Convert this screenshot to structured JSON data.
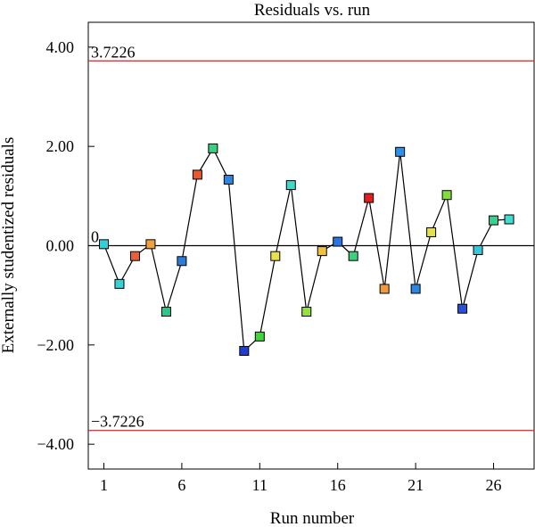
{
  "chart_data": {
    "type": "scatter",
    "title": "Residuals vs. run",
    "xlabel": "Run number",
    "ylabel": "Externally studentized residuals",
    "xlim": [
      0,
      28.6
    ],
    "ylim": [
      -4.5,
      4.5
    ],
    "x_ticks": [
      {
        "value": 1,
        "label": "1"
      },
      {
        "value": 6,
        "label": "6"
      },
      {
        "value": 11,
        "label": "11"
      },
      {
        "value": 16,
        "label": "16"
      },
      {
        "value": 21,
        "label": "21"
      },
      {
        "value": 26,
        "label": "26"
      }
    ],
    "y_ticks": [
      {
        "value": 4,
        "label": "4.00"
      },
      {
        "value": 2,
        "label": "2.00"
      },
      {
        "value": 0,
        "label": "0.00"
      },
      {
        "value": -2,
        "label": "-2.00"
      },
      {
        "value": -4,
        "label": "-4.00"
      }
    ],
    "reference_lines": [
      {
        "value": 3.7226,
        "label": "3.7226",
        "color": "#e02020"
      },
      {
        "value": 0,
        "label": "0",
        "color": "#000000"
      },
      {
        "value": -3.7226,
        "label": "-3.7226",
        "color": "#e02020"
      }
    ],
    "series": [
      {
        "connected": true,
        "line_color": "#000000",
        "points": [
          {
            "x": 1,
            "y": 0.03,
            "color": "#2fd0d8"
          },
          {
            "x": 2,
            "y": -0.77,
            "color": "#36d2d6"
          },
          {
            "x": 3,
            "y": -0.21,
            "color": "#e8603a"
          },
          {
            "x": 4,
            "y": 0.03,
            "color": "#f0a040"
          },
          {
            "x": 5,
            "y": -1.33,
            "color": "#2ec58a"
          },
          {
            "x": 6,
            "y": -0.31,
            "color": "#2e7cd6"
          },
          {
            "x": 7,
            "y": 1.43,
            "color": "#e85a30"
          },
          {
            "x": 8,
            "y": 1.96,
            "color": "#3ccf80"
          },
          {
            "x": 9,
            "y": 1.33,
            "color": "#2e86e0"
          },
          {
            "x": 10,
            "y": -2.12,
            "color": "#1f3ed0"
          },
          {
            "x": 11,
            "y": -1.83,
            "color": "#3fd53a"
          },
          {
            "x": 12,
            "y": -0.21,
            "color": "#e8e050"
          },
          {
            "x": 13,
            "y": 1.22,
            "color": "#40d8c8"
          },
          {
            "x": 14,
            "y": -1.33,
            "color": "#98e040"
          },
          {
            "x": 15,
            "y": -0.11,
            "color": "#f0c040"
          },
          {
            "x": 16,
            "y": 0.08,
            "color": "#2a74e0"
          },
          {
            "x": 17,
            "y": -0.21,
            "color": "#3ed07a"
          },
          {
            "x": 18,
            "y": 0.96,
            "color": "#e02020"
          },
          {
            "x": 19,
            "y": -0.87,
            "color": "#f09a40"
          },
          {
            "x": 20,
            "y": 1.89,
            "color": "#2e90e8"
          },
          {
            "x": 21,
            "y": -0.87,
            "color": "#2e86e0"
          },
          {
            "x": 22,
            "y": 0.27,
            "color": "#e4e050"
          },
          {
            "x": 23,
            "y": 1.02,
            "color": "#80dc40"
          },
          {
            "x": 24,
            "y": -1.27,
            "color": "#2a50d8"
          },
          {
            "x": 25,
            "y": -0.09,
            "color": "#36c8d8"
          },
          {
            "x": 26,
            "y": 0.51,
            "color": "#3ccf90"
          },
          {
            "x": 27,
            "y": 0.53,
            "color": "#40dcd0"
          }
        ]
      }
    ],
    "grid": false,
    "legend": "none"
  }
}
